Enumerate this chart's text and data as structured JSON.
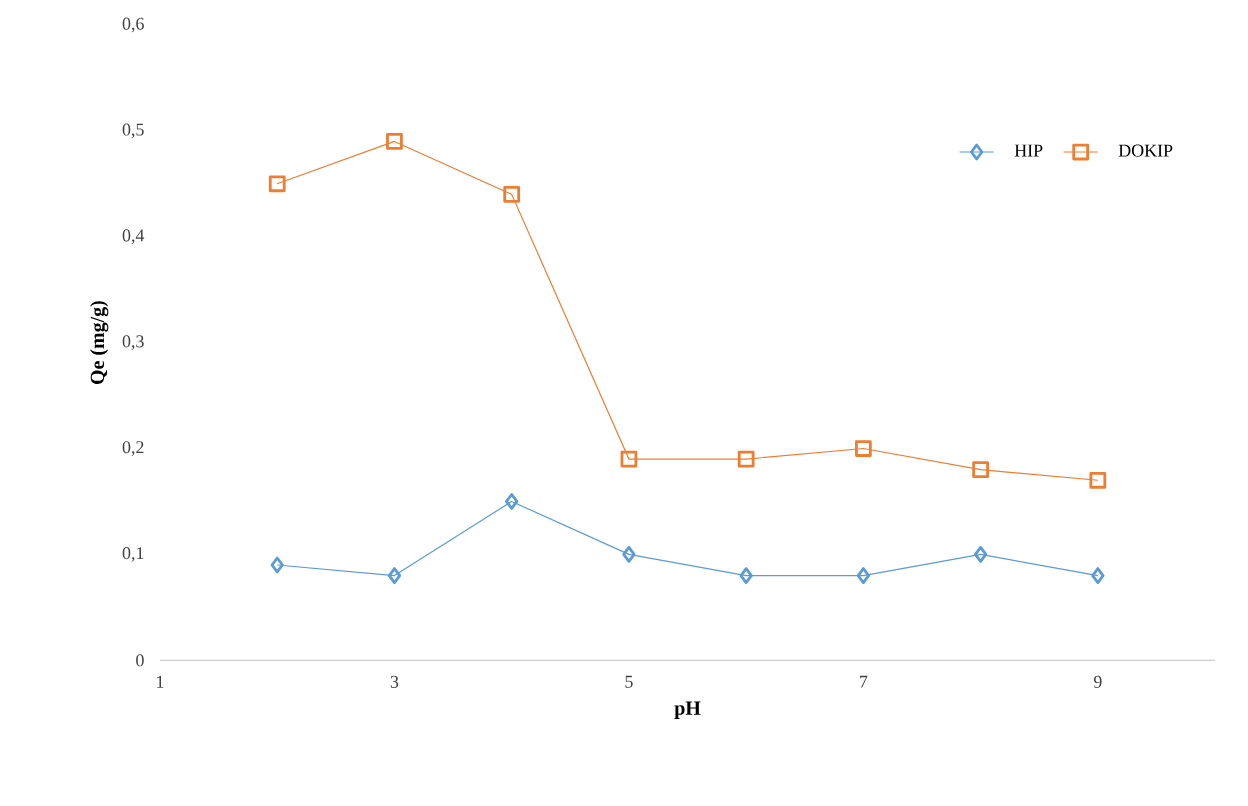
{
  "chart_data": {
    "type": "line",
    "xlabel": "pH",
    "ylabel": "Qe (mg/g)",
    "x": [
      2,
      3,
      4,
      5,
      6,
      7,
      8,
      9
    ],
    "series": [
      {
        "name": "HIP",
        "color": "#5b9bd5",
        "marker": "diamond",
        "values": [
          0.09,
          0.08,
          0.15,
          0.1,
          0.08,
          0.08,
          0.1,
          0.08
        ]
      },
      {
        "name": "DOKIP",
        "color": "#ed7d31",
        "marker": "square",
        "values": [
          0.45,
          0.49,
          0.44,
          0.19,
          0.19,
          0.2,
          0.18,
          0.17
        ]
      }
    ],
    "xlim": [
      1,
      10
    ],
    "xticks": [
      1,
      3,
      5,
      7,
      9
    ],
    "ylim": [
      0,
      0.6
    ],
    "yticks": [
      {
        "value": 0,
        "label": "0"
      },
      {
        "value": 0.1,
        "label": "0,1"
      },
      {
        "value": 0.2,
        "label": "0,2"
      },
      {
        "value": 0.3,
        "label": "0,3"
      },
      {
        "value": 0.4,
        "label": "0,4"
      },
      {
        "value": 0.5,
        "label": "0,5"
      },
      {
        "value": 0.6,
        "label": "0,6"
      }
    ],
    "grid": false,
    "legend": "top right",
    "line_style": "solid"
  }
}
